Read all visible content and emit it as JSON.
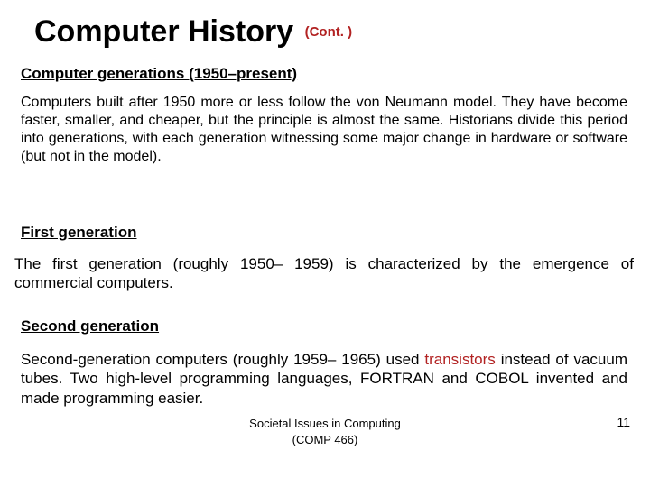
{
  "colors": {
    "text": "#000000",
    "accent": "#b22222",
    "background": "#ffffff"
  },
  "typography": {
    "family": "Arial",
    "title_size_pt": 34,
    "title_weight": "bold",
    "cont_size_pt": 15,
    "subhead_size_pt": 17,
    "subhead_weight": "bold",
    "subhead_underline": true,
    "body_size_pt": 16,
    "body2_size_pt": 17,
    "footer_size_pt": 13,
    "pagenum_size_pt": 14,
    "body_align": "justify",
    "line_height": 1.25
  },
  "title": "Computer History",
  "cont": "(Cont. )",
  "subhead1": "Computer generations (1950–present)",
  "para1": "Computers built after 1950 more or less follow the von Neumann model. They have become faster, smaller, and cheaper, but the principle is almost the same. Historians divide this period into generations, with each generation witnessing some major change in hardware or software (but not in the model).",
  "subhead2": "First generation",
  "para2": "The first generation (roughly 1950– 1959) is characterized by the emergence of commercial computers.",
  "subhead3": "Second generation",
  "para3_pre": "Second-generation computers (roughly 1959– 1965) used ",
  "para3_accent": "transistors",
  "para3_post": " instead of vacuum tubes. Two high-level programming languages, FORTRAN and COBOL invented and made programming easier.",
  "footer1": "Societal Issues in Computing",
  "footer2": "(COMP 466)",
  "page": "11"
}
